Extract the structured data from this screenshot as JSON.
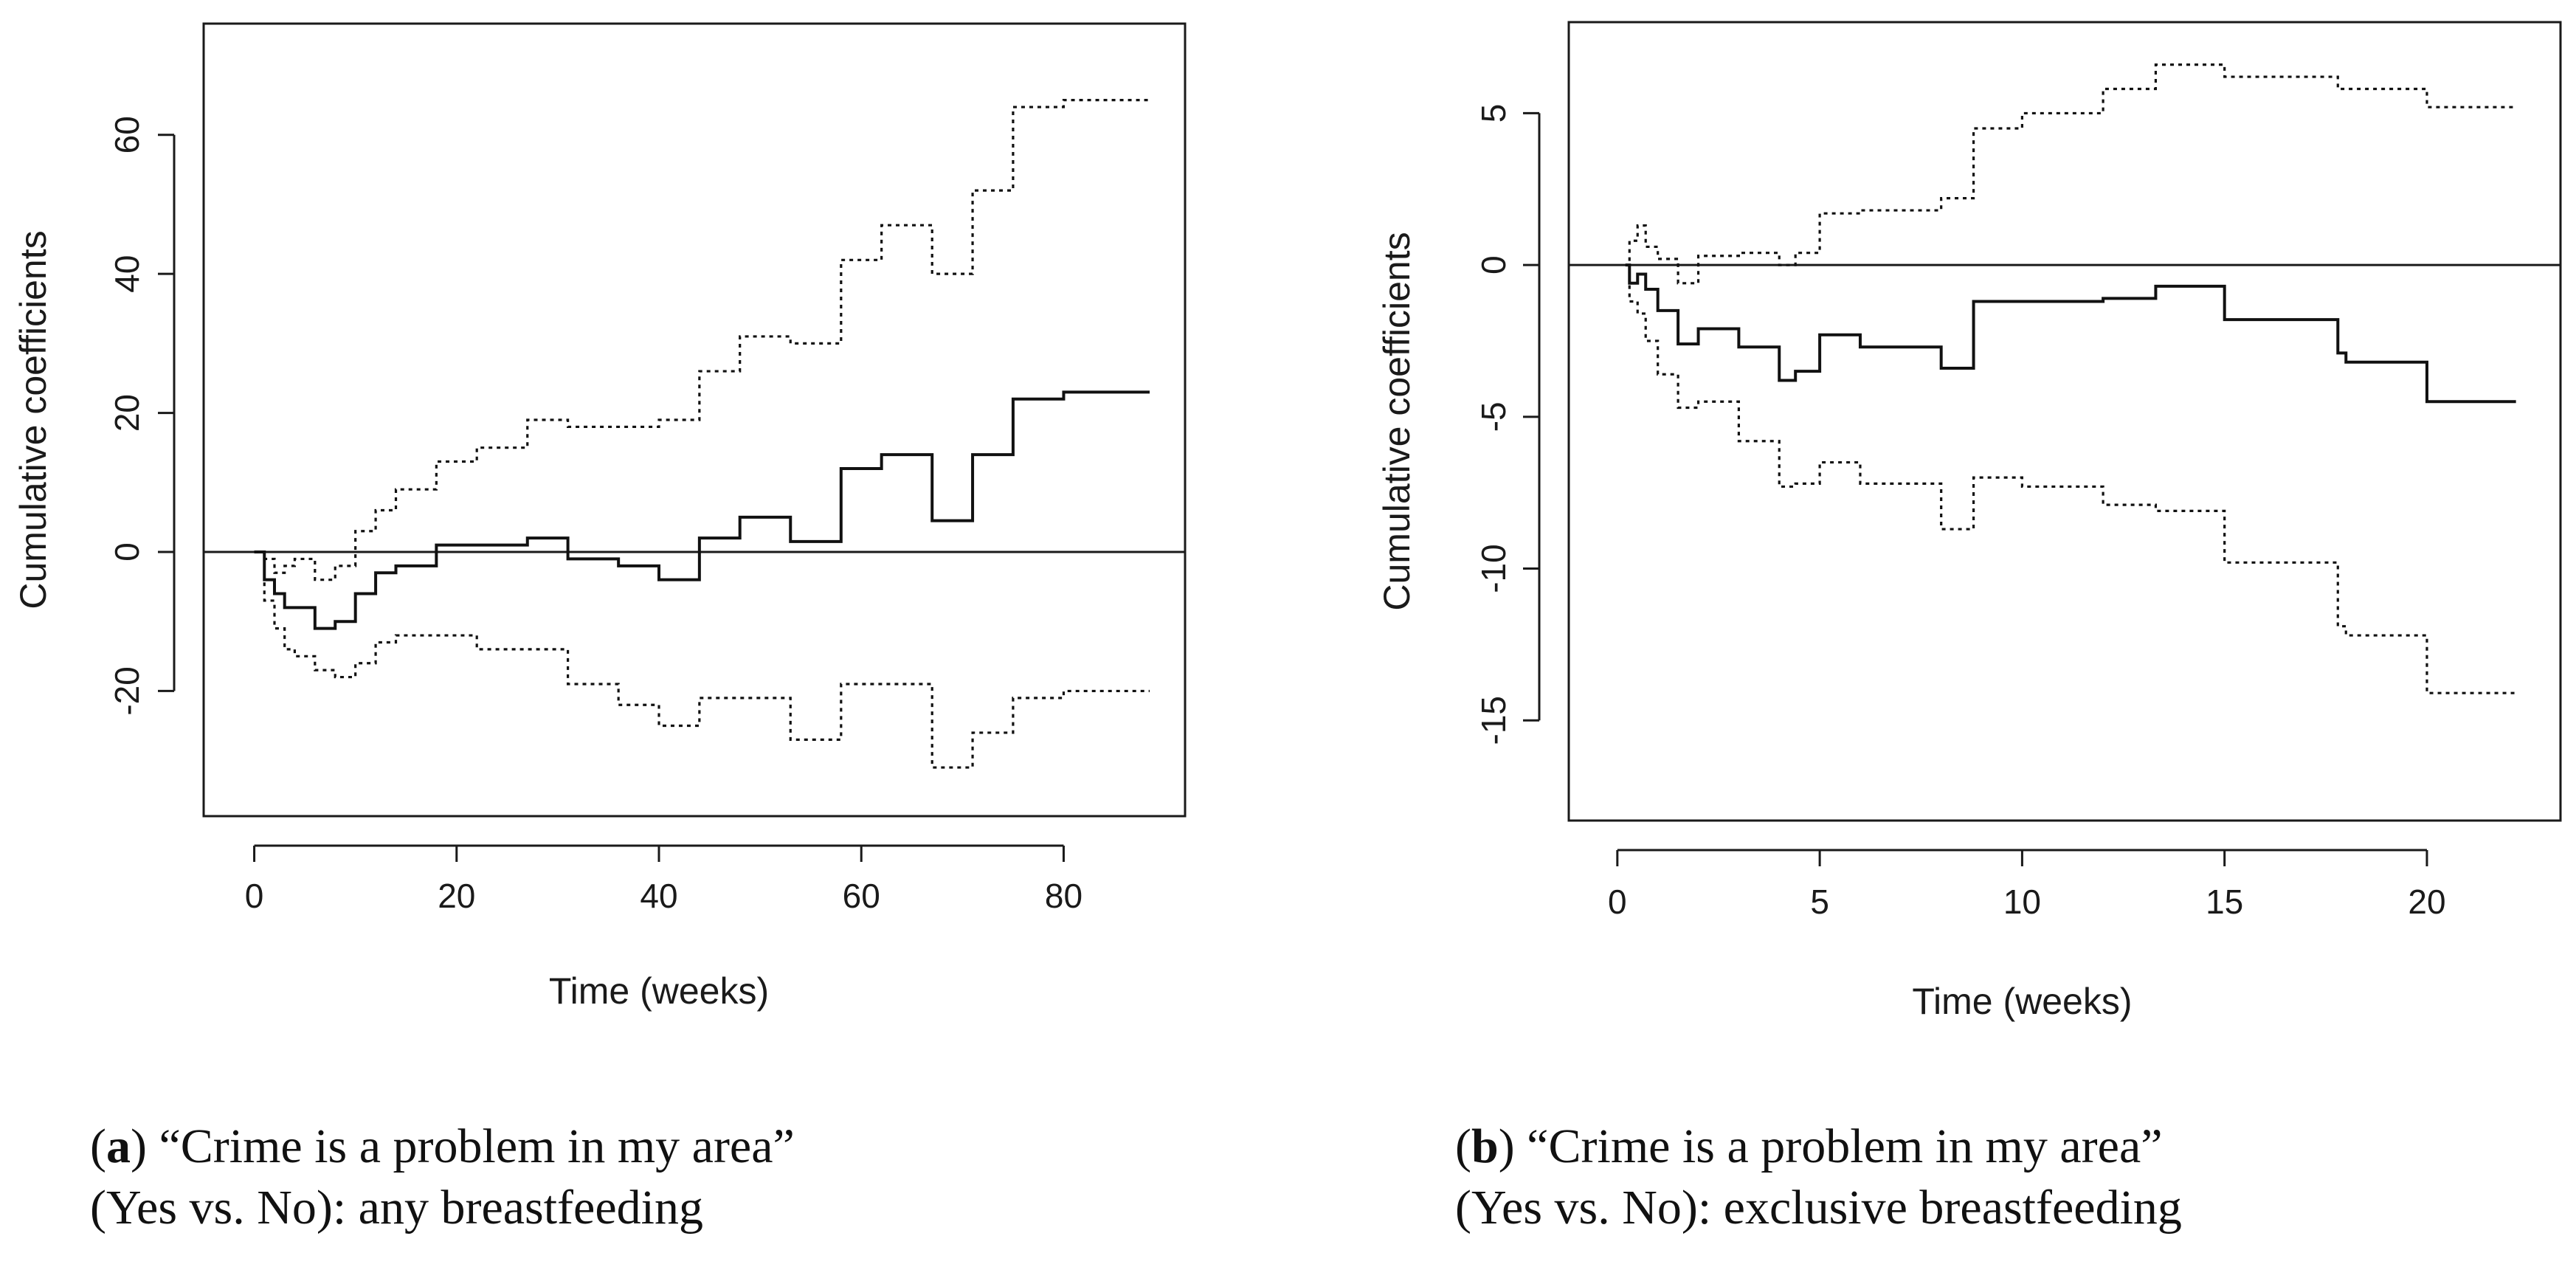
{
  "chart_data": [
    {
      "panel": "a",
      "type": "line",
      "step": true,
      "xlabel": "Time (weeks)",
      "ylabel": "Cumulative coefficients",
      "xlim": [
        -5,
        92
      ],
      "ylim": [
        -38,
        76
      ],
      "xticks": [
        0,
        20,
        40,
        60,
        80
      ],
      "yticks": [
        -20,
        0,
        20,
        40,
        60
      ],
      "reference_line": 0,
      "grid": false,
      "series": [
        {
          "style": "solid",
          "x": [
            0,
            1,
            2,
            3,
            4,
            6,
            8,
            10,
            12,
            14,
            18,
            27,
            31,
            36,
            40,
            44,
            48,
            53,
            58,
            62,
            67,
            71,
            75,
            80,
            88.5
          ],
          "y": [
            0,
            -4,
            -6,
            -8,
            -8,
            -11,
            -10,
            -6,
            -3,
            -2,
            1,
            2,
            -1,
            -2,
            -4,
            2,
            5,
            1.5,
            12,
            14,
            4.5,
            14,
            22,
            23,
            23
          ]
        },
        {
          "style": "dotted",
          "x": [
            0,
            1,
            2,
            3,
            4,
            6,
            8,
            10,
            12,
            14,
            18,
            22,
            27,
            31,
            36,
            40,
            44,
            48,
            53,
            58,
            62,
            67,
            71,
            75,
            80,
            88.5
          ],
          "y": [
            0,
            -1,
            -3,
            -2,
            -1,
            -4,
            -2,
            3,
            6,
            9,
            13,
            15,
            19,
            18,
            18,
            19,
            26,
            31,
            30,
            42,
            47,
            40,
            52,
            64,
            65,
            65
          ]
        },
        {
          "style": "dotted",
          "x": [
            0,
            1,
            2,
            3,
            4,
            6,
            8,
            10,
            12,
            14,
            18,
            22,
            27,
            31,
            36,
            40,
            44,
            48,
            53,
            58,
            62,
            67,
            71,
            75,
            80,
            88.5
          ],
          "y": [
            0,
            -7,
            -11,
            -14,
            -15,
            -17,
            -18,
            -16,
            -13,
            -12,
            -12,
            -14,
            -14,
            -19,
            -22,
            -25,
            -21,
            -21,
            -27,
            -19,
            -19,
            -31,
            -26,
            -21,
            -20,
            -20
          ]
        }
      ]
    },
    {
      "panel": "b",
      "type": "line",
      "step": true,
      "xlabel": "Time (weeks)",
      "ylabel": "Cumulative coefficients",
      "xlim": [
        -1.2,
        23.3
      ],
      "ylim": [
        -18.3,
        8
      ],
      "xticks": [
        0,
        5,
        10,
        15,
        20
      ],
      "yticks": [
        -15,
        -10,
        -5,
        0,
        5
      ],
      "reference_line": 0,
      "grid": false,
      "series": [
        {
          "style": "solid",
          "x": [
            0.2,
            0.3,
            0.5,
            0.7,
            1,
            1.5,
            2,
            3,
            4,
            4.4,
            5,
            6,
            8,
            8.8,
            10,
            12,
            13.3,
            15,
            17.8,
            18,
            20,
            22.2
          ],
          "y": [
            0,
            -0.6,
            -0.3,
            -0.8,
            -1.5,
            -2.6,
            -2.1,
            -2.7,
            -3.8,
            -3.5,
            -2.3,
            -2.7,
            -3.4,
            -1.2,
            -1.2,
            -1.1,
            -0.7,
            -1.8,
            -2.9,
            -3.2,
            -4.5,
            -4.5
          ]
        },
        {
          "style": "dotted",
          "x": [
            0.2,
            0.3,
            0.5,
            0.7,
            1,
            1.5,
            2,
            3,
            4,
            4.4,
            5,
            6,
            8,
            8.8,
            10,
            12,
            13.3,
            15,
            17.8,
            18,
            20,
            22.2
          ],
          "y": [
            0,
            0.8,
            1.3,
            0.6,
            0.2,
            -0.6,
            0.3,
            0.4,
            0,
            0.4,
            1.7,
            1.8,
            2.2,
            4.5,
            5.0,
            5.8,
            6.6,
            6.2,
            5.8,
            5.8,
            5.2,
            5.2
          ]
        },
        {
          "style": "dotted",
          "x": [
            0.2,
            0.3,
            0.5,
            0.7,
            1,
            1.5,
            2,
            3,
            4,
            4.4,
            5,
            6,
            8,
            8.8,
            10,
            12,
            13.3,
            15,
            17.8,
            18,
            20,
            22.2
          ],
          "y": [
            0,
            -1.2,
            -1.6,
            -2.5,
            -3.6,
            -4.7,
            -4.5,
            -5.8,
            -7.3,
            -7.2,
            -6.5,
            -7.2,
            -8.7,
            -7.0,
            -7.3,
            -7.9,
            -8.1,
            -9.8,
            -11.9,
            -12.2,
            -14.1,
            -14.1
          ]
        }
      ]
    }
  ],
  "captions": {
    "a": {
      "letter": "a",
      "line1_rest": ") “Crime is a problem in my area”",
      "line2": "(Yes vs. No): any breastfeeding"
    },
    "b": {
      "letter": "b",
      "line1_rest": ") “Crime is a problem in my area”",
      "line2": "(Yes vs. No): exclusive breastfeeding"
    }
  }
}
